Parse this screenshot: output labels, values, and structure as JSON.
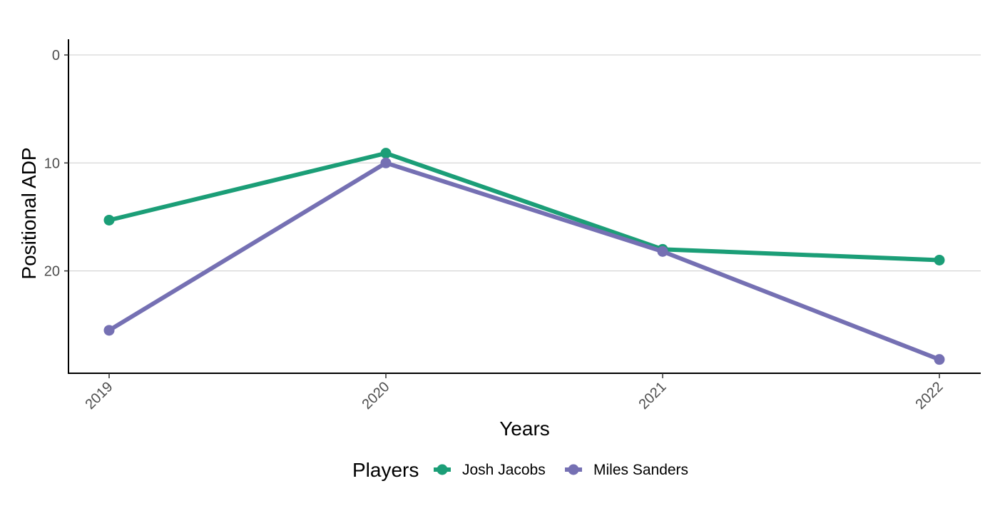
{
  "chart_data": {
    "type": "line",
    "xlabel": "Years",
    "ylabel": "Positional ADP",
    "x": [
      2019,
      2020,
      2021,
      2022
    ],
    "x_tick_labels": [
      "2019",
      "2020",
      "2021",
      "2022"
    ],
    "y_ticks": [
      0,
      10,
      20
    ],
    "y_tick_labels": [
      "0",
      "10",
      "20"
    ],
    "ylim": [
      0,
      29
    ],
    "y_reversed": true,
    "grid": "horizontal major",
    "legend": {
      "title": "Players",
      "position": "bottom"
    },
    "series": [
      {
        "name": "Josh Jacobs",
        "color": "#1b9e77",
        "values": [
          15.3,
          9.1,
          18.0,
          19.0
        ]
      },
      {
        "name": "Miles Sanders",
        "color": "#7570b3",
        "values": [
          25.5,
          10.0,
          18.2,
          28.2
        ]
      }
    ]
  }
}
